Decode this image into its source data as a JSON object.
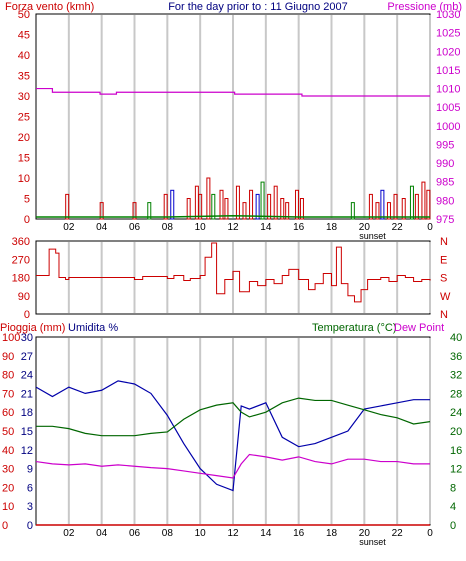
{
  "header": {
    "left_label": "Forza vento (kmh)",
    "center_label": "For the day prior to : 11 Giugno 2007",
    "right_label": "Pressione (mb)"
  },
  "lower_header": {
    "rain_label": "Pioggia (mm)",
    "humidity_label": "Umidita %",
    "temp_label": "Temperatura (°C)",
    "dew_label": "Dew Point"
  },
  "x_ticks": [
    "02",
    "04",
    "06",
    "08",
    "10",
    "12",
    "14",
    "16",
    "18",
    "20",
    "22",
    "0"
  ],
  "sunset_label": "sunset",
  "colors": {
    "wind": "#cc0000",
    "gust": "#008000",
    "direction_alt": "#0000cc",
    "pressure": "#cc00cc",
    "humidity": "#0000aa",
    "temperature": "#006600",
    "dewpoint": "#cc00cc",
    "rain": "#cc0000",
    "grid": "#c8c8c8"
  },
  "chart_data": [
    {
      "type": "bar",
      "id": "wind_pressure",
      "title": "For the day prior to : 11 Giugno 2007",
      "ylabel": "Forza vento (kmh)",
      "y2label": "Pressione (mb)",
      "ylim": [
        0,
        50
      ],
      "y2lim": [
        975,
        1030
      ],
      "yticks": [
        0,
        5,
        10,
        15,
        20,
        25,
        30,
        35,
        40,
        45,
        50
      ],
      "y2ticks": [
        975,
        980,
        985,
        990,
        995,
        1000,
        1005,
        1010,
        1015,
        1020,
        1025,
        1030
      ],
      "xlim": [
        0,
        24
      ],
      "pressure": {
        "x": [
          0,
          0.5,
          1,
          3.6,
          3.9,
          4.9,
          8.1,
          8.4,
          11.7,
          12.1,
          15.8,
          16.2,
          22,
          24
        ],
        "y": [
          1010,
          1010,
          1009,
          1009,
          1008.5,
          1009,
          1009,
          1009,
          1009,
          1008.5,
          1008.5,
          1008,
          1008,
          1008
        ]
      },
      "wind_bars": [
        {
          "x": 1.9,
          "v": 6
        },
        {
          "x": 4.0,
          "v": 4
        },
        {
          "x": 6.0,
          "v": 4
        },
        {
          "x": 6.9,
          "v": 4
        },
        {
          "x": 7.9,
          "v": 6
        },
        {
          "x": 8.3,
          "v": 7
        },
        {
          "x": 9.3,
          "v": 5
        },
        {
          "x": 9.8,
          "v": 8
        },
        {
          "x": 10.0,
          "v": 6
        },
        {
          "x": 10.5,
          "v": 10
        },
        {
          "x": 10.8,
          "v": 6
        },
        {
          "x": 11.3,
          "v": 7
        },
        {
          "x": 11.6,
          "v": 5
        },
        {
          "x": 12.3,
          "v": 8
        },
        {
          "x": 12.7,
          "v": 4
        },
        {
          "x": 13.1,
          "v": 7
        },
        {
          "x": 13.5,
          "v": 6
        },
        {
          "x": 13.8,
          "v": 9
        },
        {
          "x": 14.2,
          "v": 6
        },
        {
          "x": 14.6,
          "v": 8
        },
        {
          "x": 15.0,
          "v": 5
        },
        {
          "x": 15.3,
          "v": 4
        },
        {
          "x": 15.9,
          "v": 7
        },
        {
          "x": 16.2,
          "v": 5
        },
        {
          "x": 19.3,
          "v": 4
        },
        {
          "x": 20.4,
          "v": 6
        },
        {
          "x": 20.8,
          "v": 4
        },
        {
          "x": 21.1,
          "v": 7
        },
        {
          "x": 21.5,
          "v": 4
        },
        {
          "x": 21.9,
          "v": 6
        },
        {
          "x": 22.4,
          "v": 5
        },
        {
          "x": 22.9,
          "v": 8
        },
        {
          "x": 23.2,
          "v": 6
        },
        {
          "x": 23.6,
          "v": 9
        },
        {
          "x": 23.9,
          "v": 7
        }
      ],
      "gust_line": {
        "x": [
          0,
          8,
          12,
          16,
          24
        ],
        "y": [
          0.5,
          0.5,
          0.8,
          0.5,
          0.5
        ]
      }
    },
    {
      "type": "line",
      "id": "wind_direction",
      "ylabel_left_ticks": [
        "0",
        "90",
        "180",
        "270",
        "360"
      ],
      "ylabel_right_ticks": [
        "N",
        "W",
        "S",
        "E",
        "N"
      ],
      "ylim": [
        0,
        360
      ],
      "x": [
        0,
        0.5,
        0.8,
        1.2,
        1.4,
        1.8,
        2.0,
        4.0,
        6.0,
        6.5,
        7.0,
        8.0,
        8.4,
        9.0,
        9.4,
        10.0,
        10.3,
        10.7,
        11.0,
        11.5,
        12.0,
        12.4,
        13.0,
        13.5,
        14.0,
        14.5,
        15.0,
        15.4,
        16.0,
        16.6,
        17.0,
        17.5,
        18.0,
        18.3,
        18.6,
        19.0,
        19.4,
        19.8,
        20.2,
        21.0,
        21.5,
        22.0,
        22.5,
        23.0,
        23.5,
        24.0
      ],
      "y": [
        190,
        190,
        320,
        300,
        180,
        170,
        180,
        180,
        170,
        185,
        185,
        175,
        190,
        165,
        175,
        190,
        280,
        350,
        100,
        170,
        210,
        110,
        160,
        140,
        170,
        150,
        190,
        220,
        170,
        120,
        150,
        200,
        140,
        330,
        150,
        90,
        60,
        120,
        170,
        180,
        160,
        190,
        180,
        160,
        170,
        165
      ]
    },
    {
      "type": "line",
      "id": "temp_hum",
      "rain_ticks": [
        "0",
        "10",
        "20",
        "30",
        "40",
        "50",
        "60",
        "70",
        "80",
        "90",
        "100"
      ],
      "humidity_ticks": [
        "0",
        "3",
        "6",
        "9",
        "12",
        "15",
        "18",
        "21",
        "24",
        "27",
        "30"
      ],
      "temp_ticks": [
        "0",
        "4",
        "8",
        "12",
        "16",
        "20",
        "24",
        "28",
        "32",
        "36",
        "40"
      ],
      "temp_ylim": [
        0,
        40
      ],
      "x": [
        0,
        1,
        2,
        3,
        4,
        5,
        6,
        7,
        8,
        9,
        10,
        11,
        12,
        12.5,
        13,
        14,
        15,
        16,
        17,
        18,
        19,
        20,
        21,
        22,
        23,
        24
      ],
      "series": [
        {
          "name": "Umidita %",
          "key": "humidity",
          "scale": "humidity",
          "values": [
            22,
            20.5,
            22,
            21,
            21.5,
            23,
            22.5,
            21,
            17.5,
            13,
            9,
            6.5,
            5.5,
            19,
            18.5,
            19.5,
            14,
            12.5,
            13,
            14,
            15,
            18.5,
            19,
            19.5,
            20,
            20
          ]
        },
        {
          "name": "Temperatura (°C)",
          "key": "temperature",
          "scale": "temp",
          "values": [
            21,
            21,
            20.5,
            19.5,
            19,
            19,
            19,
            19.5,
            19.8,
            22.5,
            24.5,
            25.5,
            26,
            24,
            23,
            24,
            26,
            27,
            26.5,
            26.5,
            25.5,
            24.5,
            23.5,
            22.8,
            21.5,
            22
          ]
        },
        {
          "name": "Dew Point",
          "key": "dewpoint",
          "scale": "temp",
          "values": [
            13.5,
            13,
            12.8,
            13,
            12.5,
            12.8,
            12.5,
            12.2,
            12,
            11.5,
            11,
            10.5,
            10,
            13,
            15,
            14.5,
            13.8,
            14.5,
            13.5,
            13,
            14,
            14,
            13.5,
            13.5,
            13,
            13
          ]
        },
        {
          "name": "Pioggia (mm)",
          "key": "rain",
          "scale": "rain",
          "values": [
            0,
            0,
            0,
            0,
            0,
            0,
            0,
            0,
            0,
            0,
            0,
            0,
            0,
            0,
            0,
            0,
            0,
            0,
            0,
            0,
            0,
            0,
            0,
            0,
            0,
            0
          ]
        }
      ]
    }
  ]
}
